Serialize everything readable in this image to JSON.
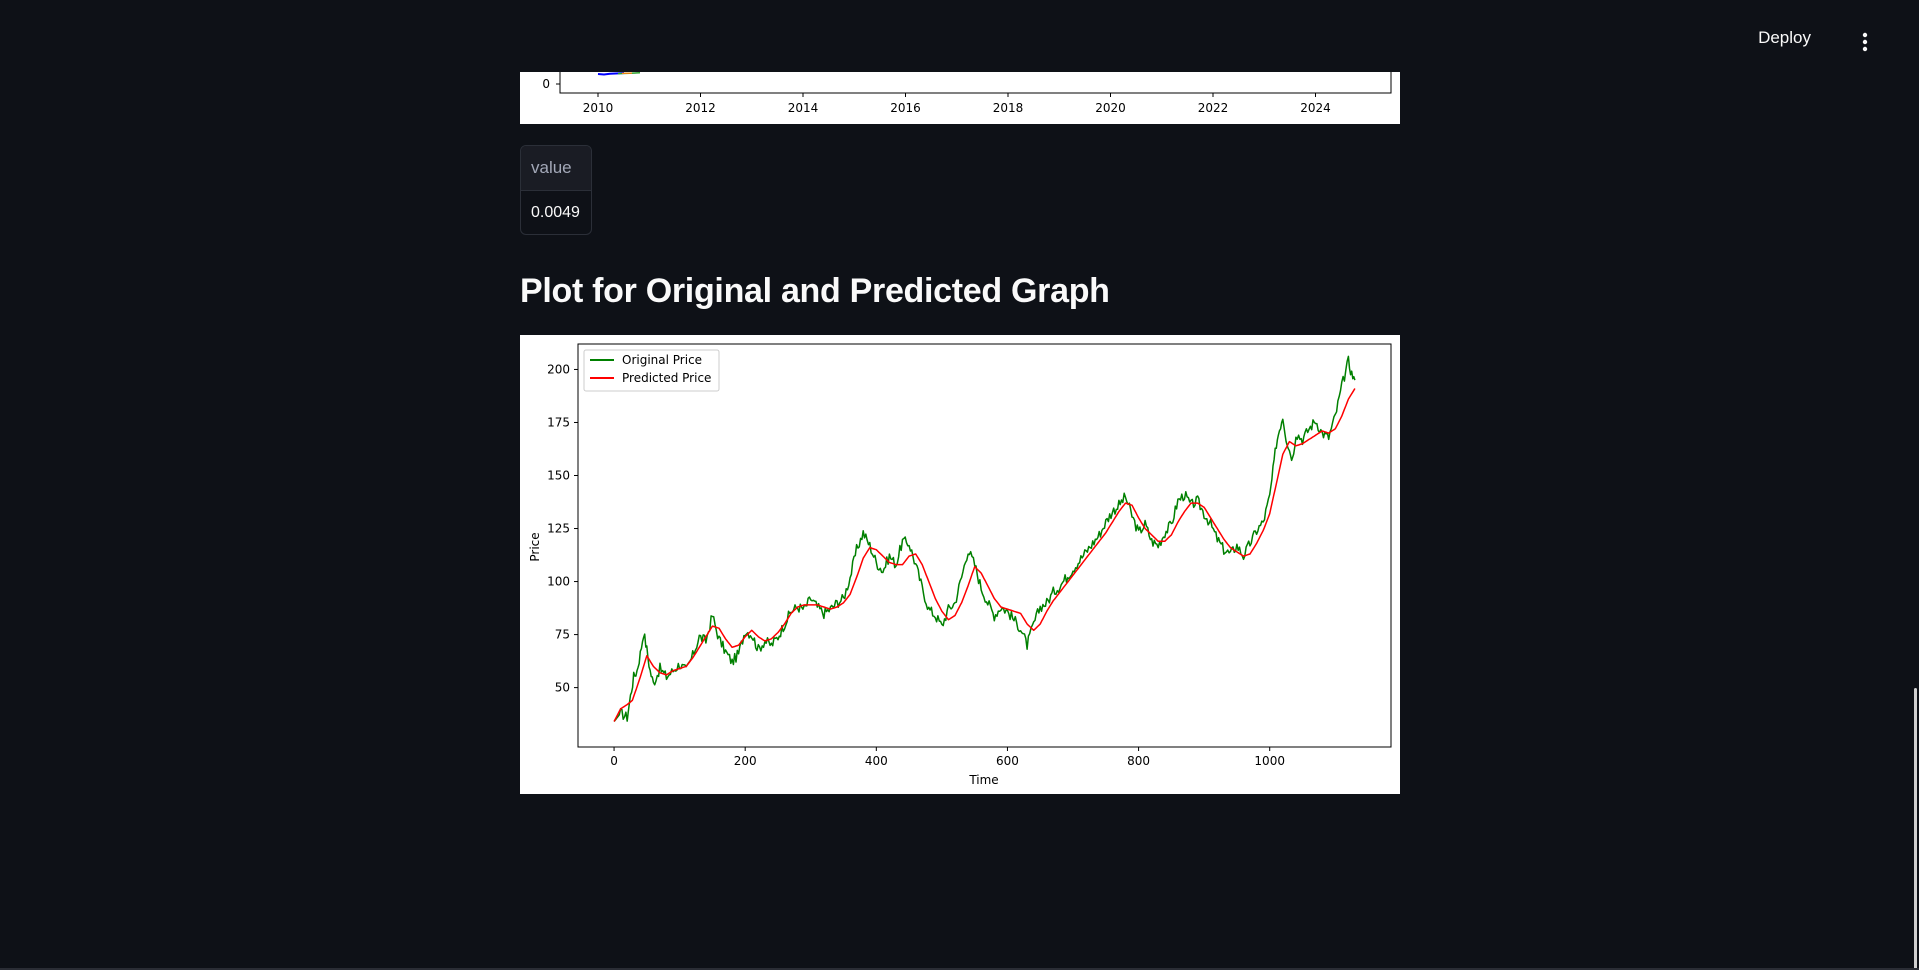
{
  "header": {
    "deploy_label": "Deploy",
    "menu_icon": "kebab-vertical-icon"
  },
  "metric_table": {
    "column_header": "value",
    "value": "0.0049"
  },
  "section_title": "Plot for Original and Predicted Graph",
  "chart_data": [
    {
      "type": "line",
      "title": "",
      "xlabel": "",
      "ylabel": "",
      "x_tick_labels": [
        "2010",
        "2012",
        "2014",
        "2016",
        "2018",
        "2020",
        "2022",
        "2024"
      ],
      "y_tick_labels": [
        "0"
      ],
      "visible": "bottom edge only (partially scrolled out of view)",
      "series_colors": [
        "#0000ff",
        "#008000",
        "#ff7f0e"
      ]
    },
    {
      "type": "line",
      "title": "",
      "xlabel": "Time",
      "ylabel": "Price",
      "xlim": [
        -55,
        1185
      ],
      "ylim": [
        22,
        212
      ],
      "x_ticks": [
        0,
        200,
        400,
        600,
        800,
        1000
      ],
      "y_ticks": [
        50,
        75,
        100,
        125,
        150,
        175,
        200
      ],
      "legend": "upper left",
      "grid": false,
      "series": [
        {
          "name": "Original Price",
          "color": "#008000",
          "points": [
            [
              0,
              34
            ],
            [
              10,
              38
            ],
            [
              20,
              36
            ],
            [
              25,
              46
            ],
            [
              30,
              55
            ],
            [
              35,
              58
            ],
            [
              40,
              66
            ],
            [
              45,
              76
            ],
            [
              50,
              68
            ],
            [
              55,
              58
            ],
            [
              60,
              52
            ],
            [
              70,
              59
            ],
            [
              80,
              55
            ],
            [
              90,
              58
            ],
            [
              100,
              61
            ],
            [
              110,
              58
            ],
            [
              120,
              65
            ],
            [
              130,
              74
            ],
            [
              140,
              72
            ],
            [
              150,
              84
            ],
            [
              160,
              73
            ],
            [
              170,
              67
            ],
            [
              180,
              62
            ],
            [
              190,
              66
            ],
            [
              200,
              77
            ],
            [
              210,
              75
            ],
            [
              220,
              68
            ],
            [
              230,
              72
            ],
            [
              240,
              70
            ],
            [
              250,
              74
            ],
            [
              260,
              80
            ],
            [
              270,
              86
            ],
            [
              280,
              88
            ],
            [
              290,
              87
            ],
            [
              300,
              92
            ],
            [
              310,
              88
            ],
            [
              320,
              85
            ],
            [
              330,
              87
            ],
            [
              340,
              90
            ],
            [
              350,
              92
            ],
            [
              360,
              102
            ],
            [
              370,
              115
            ],
            [
              380,
              123
            ],
            [
              390,
              117
            ],
            [
              400,
              109
            ],
            [
              410,
              105
            ],
            [
              420,
              112
            ],
            [
              430,
              108
            ],
            [
              440,
              119
            ],
            [
              450,
              118
            ],
            [
              460,
              108
            ],
            [
              470,
              97
            ],
            [
              480,
              87
            ],
            [
              490,
              84
            ],
            [
              500,
              79
            ],
            [
              510,
              87
            ],
            [
              520,
              90
            ],
            [
              530,
              102
            ],
            [
              540,
              115
            ],
            [
              550,
              108
            ],
            [
              560,
              97
            ],
            [
              570,
              90
            ],
            [
              580,
              84
            ],
            [
              590,
              88
            ],
            [
              600,
              86
            ],
            [
              610,
              82
            ],
            [
              620,
              78
            ],
            [
              630,
              70
            ],
            [
              640,
              80
            ],
            [
              650,
              88
            ],
            [
              660,
              90
            ],
            [
              670,
              95
            ],
            [
              680,
              98
            ],
            [
              690,
              102
            ],
            [
              700,
              106
            ],
            [
              710,
              110
            ],
            [
              720,
              114
            ],
            [
              730,
              118
            ],
            [
              740,
              122
            ],
            [
              750,
              128
            ],
            [
              760,
              133
            ],
            [
              770,
              136
            ],
            [
              780,
              140
            ],
            [
              790,
              131
            ],
            [
              800,
              123
            ],
            [
              810,
              127
            ],
            [
              820,
              119
            ],
            [
              830,
              117
            ],
            [
              840,
              123
            ],
            [
              850,
              127
            ],
            [
              860,
              138
            ],
            [
              870,
              141
            ],
            [
              880,
              136
            ],
            [
              890,
              138
            ],
            [
              900,
              132
            ],
            [
              910,
              127
            ],
            [
              920,
              120
            ],
            [
              930,
              115
            ],
            [
              940,
              113
            ],
            [
              950,
              117
            ],
            [
              960,
              112
            ],
            [
              970,
              118
            ],
            [
              980,
              124
            ],
            [
              990,
              128
            ],
            [
              1000,
              140
            ],
            [
              1005,
              152
            ],
            [
              1010,
              165
            ],
            [
              1015,
              172
            ],
            [
              1020,
              178
            ],
            [
              1025,
              168
            ],
            [
              1030,
              162
            ],
            [
              1035,
              158
            ],
            [
              1040,
              170
            ],
            [
              1050,
              167
            ],
            [
              1060,
              172
            ],
            [
              1070,
              176
            ],
            [
              1080,
              170
            ],
            [
              1090,
              168
            ],
            [
              1100,
              178
            ],
            [
              1110,
              192
            ],
            [
              1120,
              204
            ],
            [
              1125,
              198
            ],
            [
              1130,
              195
            ]
          ]
        },
        {
          "name": "Predicted Price",
          "color": "#ff0000",
          "points": [
            [
              0,
              34
            ],
            [
              10,
              40
            ],
            [
              20,
              42
            ],
            [
              28,
              44
            ],
            [
              40,
              55
            ],
            [
              50,
              65
            ],
            [
              60,
              60
            ],
            [
              70,
              57
            ],
            [
              80,
              56
            ],
            [
              90,
              58
            ],
            [
              100,
              59
            ],
            [
              110,
              60
            ],
            [
              120,
              64
            ],
            [
              130,
              69
            ],
            [
              140,
              74
            ],
            [
              150,
              79
            ],
            [
              160,
              78
            ],
            [
              170,
              73
            ],
            [
              180,
              69
            ],
            [
              190,
              70
            ],
            [
              200,
              74
            ],
            [
              210,
              77
            ],
            [
              220,
              74
            ],
            [
              230,
              72
            ],
            [
              240,
              73
            ],
            [
              250,
              76
            ],
            [
              260,
              80
            ],
            [
              270,
              85
            ],
            [
              280,
              88
            ],
            [
              290,
              89
            ],
            [
              300,
              89
            ],
            [
              310,
              89
            ],
            [
              320,
              88
            ],
            [
              330,
              87
            ],
            [
              340,
              88
            ],
            [
              350,
              90
            ],
            [
              360,
              94
            ],
            [
              370,
              102
            ],
            [
              380,
              111
            ],
            [
              390,
              116
            ],
            [
              400,
              115
            ],
            [
              410,
              112
            ],
            [
              420,
              109
            ],
            [
              430,
              108
            ],
            [
              440,
              108
            ],
            [
              450,
              112
            ],
            [
              460,
              113
            ],
            [
              470,
              108
            ],
            [
              480,
              100
            ],
            [
              490,
              92
            ],
            [
              500,
              86
            ],
            [
              510,
              82
            ],
            [
              520,
              84
            ],
            [
              530,
              90
            ],
            [
              540,
              98
            ],
            [
              550,
              107
            ],
            [
              560,
              104
            ],
            [
              570,
              98
            ],
            [
              580,
              92
            ],
            [
              590,
              88
            ],
            [
              600,
              87
            ],
            [
              610,
              86
            ],
            [
              620,
              85
            ],
            [
              630,
              80
            ],
            [
              640,
              77
            ],
            [
              650,
              80
            ],
            [
              660,
              86
            ],
            [
              670,
              91
            ],
            [
              680,
              95
            ],
            [
              690,
              99
            ],
            [
              700,
              103
            ],
            [
              710,
              107
            ],
            [
              720,
              111
            ],
            [
              730,
              115
            ],
            [
              740,
              119
            ],
            [
              750,
              123
            ],
            [
              760,
              128
            ],
            [
              770,
              133
            ],
            [
              780,
              137
            ],
            [
              790,
              136
            ],
            [
              800,
              130
            ],
            [
              810,
              125
            ],
            [
              820,
              122
            ],
            [
              830,
              119
            ],
            [
              840,
              119
            ],
            [
              850,
              122
            ],
            [
              860,
              128
            ],
            [
              870,
              133
            ],
            [
              880,
              137
            ],
            [
              890,
              137
            ],
            [
              900,
              135
            ],
            [
              910,
              130
            ],
            [
              920,
              125
            ],
            [
              930,
              120
            ],
            [
              940,
              116
            ],
            [
              950,
              114
            ],
            [
              960,
              112
            ],
            [
              970,
              113
            ],
            [
              980,
              118
            ],
            [
              990,
              124
            ],
            [
              1000,
              132
            ],
            [
              1010,
              146
            ],
            [
              1020,
              160
            ],
            [
              1030,
              166
            ],
            [
              1040,
              164
            ],
            [
              1050,
              165
            ],
            [
              1060,
              167
            ],
            [
              1070,
              169
            ],
            [
              1080,
              171
            ],
            [
              1090,
              170
            ],
            [
              1100,
              172
            ],
            [
              1110,
              178
            ],
            [
              1120,
              186
            ],
            [
              1130,
              191
            ]
          ]
        }
      ]
    }
  ]
}
